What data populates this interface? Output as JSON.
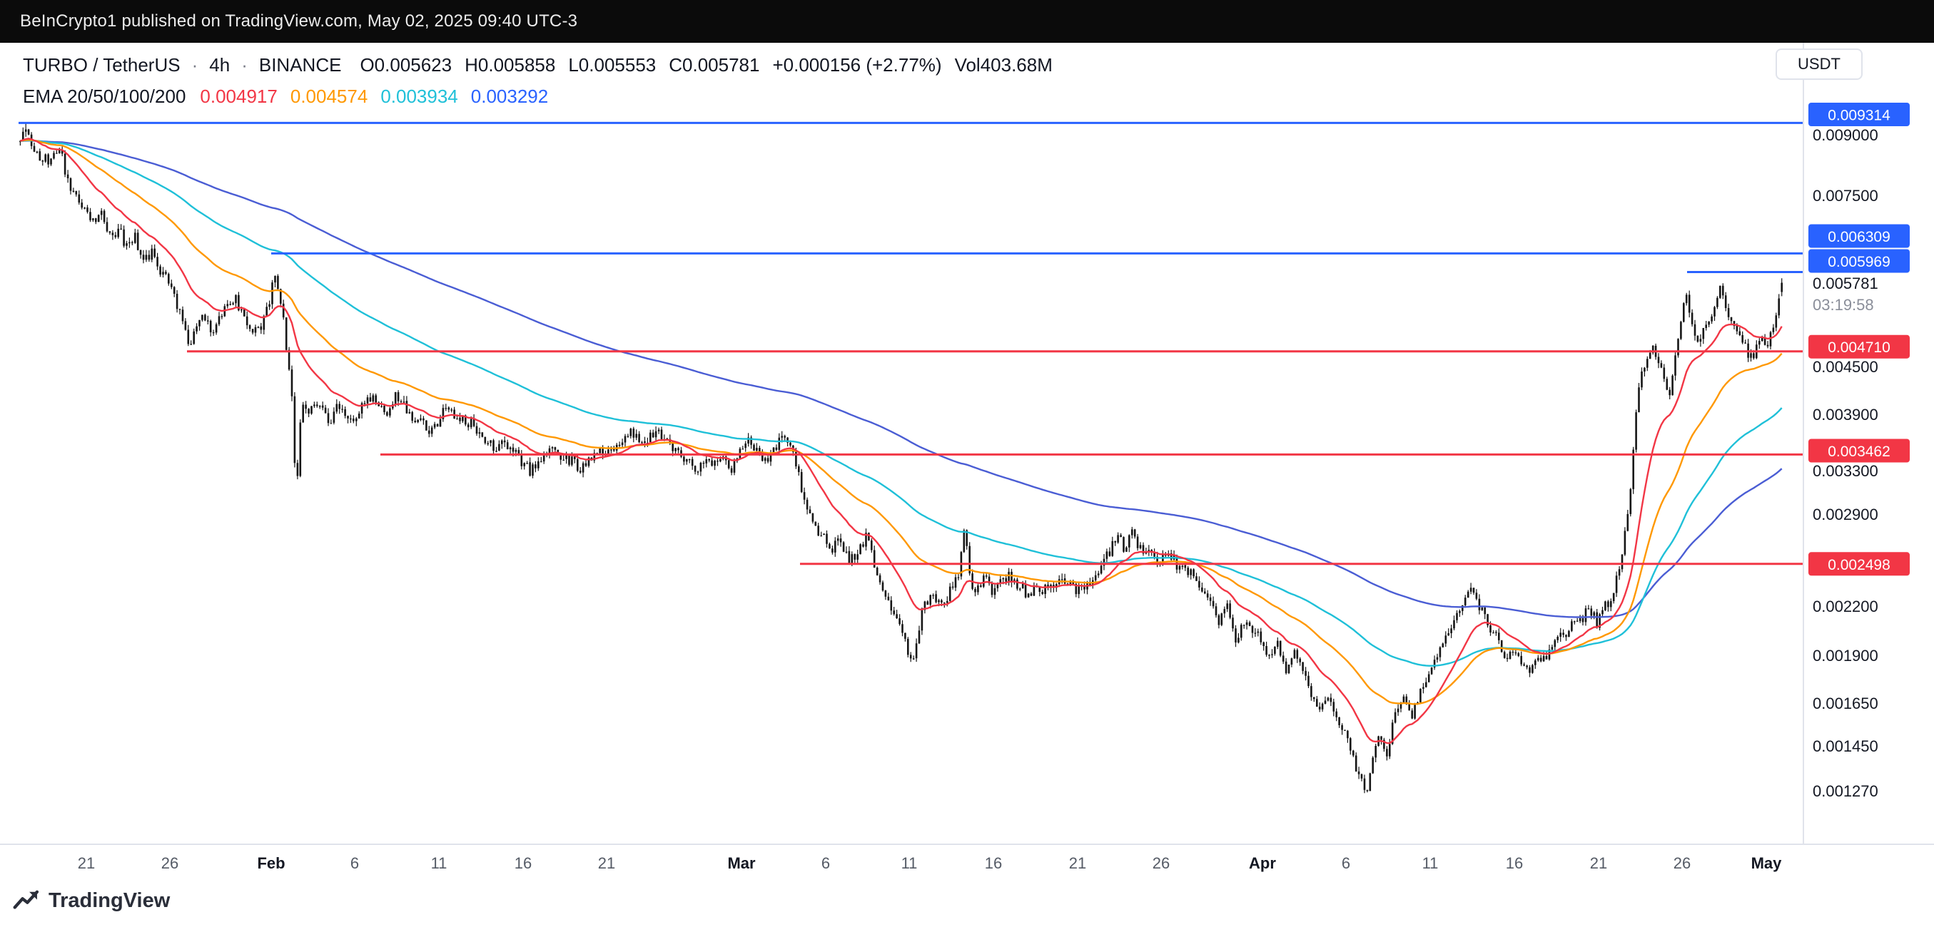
{
  "topbar": {
    "attribution": "BeInCrypto1 published on TradingView.com, May 02, 2025 09:40 UTC-3"
  },
  "header": {
    "symbol": "TURBO / TetherUS",
    "separator": "·",
    "interval": "4h",
    "exchange": "BINANCE",
    "open": "O0.005623",
    "high": "H0.005858",
    "low": "L0.005553",
    "close": "C0.005781",
    "change": "+0.000156 (+2.77%)",
    "volume": "Vol403.68M",
    "ema": {
      "label": "EMA 20/50/100/200",
      "values": [
        {
          "value": "0.004917",
          "color": "#f23645"
        },
        {
          "value": "0.004574",
          "color": "#ff9800"
        },
        {
          "value": "0.003934",
          "color": "#1fc0d8"
        },
        {
          "value": "0.003292",
          "color": "#2962ff"
        }
      ]
    }
  },
  "price_axis": {
    "currency_button": "USDT"
  },
  "footer": {
    "logo_text": "TradingView"
  },
  "chart_data": {
    "type": "candlestick",
    "symbol": "TURBO/TetherUS",
    "exchange": "BINANCE",
    "interval": "4h",
    "price_scale": "log",
    "candle_color": "#161616",
    "x_range": [
      "Jan 17 2025",
      "May 2 2025"
    ],
    "last": {
      "open": 0.005623,
      "high": 0.005858,
      "low": 0.005553,
      "close": 0.005781,
      "change": "+0.000156",
      "change_pct": 2.77,
      "volume": "403.68M"
    },
    "current_price": {
      "label": "0.005781",
      "price": 0.005781,
      "countdown": "03:19:58"
    },
    "emas": [
      {
        "period": 20,
        "color": "#f23645",
        "value": 0.004917
      },
      {
        "period": 50,
        "color": "#ff9800",
        "value": 0.004574
      },
      {
        "period": 100,
        "color": "#1fc0d8",
        "value": 0.003934
      },
      {
        "period": 200,
        "color": "#4a5dd4",
        "value": 0.003292
      }
    ],
    "horizontal_lines": [
      {
        "label": "0.009314",
        "price": 0.009314,
        "color": "#2962ff",
        "start_day": 0
      },
      {
        "label": "0.006309",
        "price": 0.006309,
        "color": "#2962ff",
        "start_day": 15
      },
      {
        "label": "0.005969",
        "price": 0.005969,
        "color": "#2962ff",
        "start_day": 99.3
      },
      {
        "label": "0.004710",
        "price": 0.00471,
        "color": "#f23645",
        "start_day": 10
      },
      {
        "label": "0.003462",
        "price": 0.003462,
        "color": "#f23645",
        "start_day": 21.5
      },
      {
        "label": "0.002498",
        "price": 0.002498,
        "color": "#f23645",
        "start_day": 46.5
      }
    ],
    "y_ticks": [
      {
        "label": "0.009000",
        "price": 0.009
      },
      {
        "label": "0.007500",
        "price": 0.0075
      },
      {
        "label": "0.004500",
        "price": 0.0045
      },
      {
        "label": "0.003900",
        "price": 0.0039
      },
      {
        "label": "0.003300",
        "price": 0.0033
      },
      {
        "label": "0.002900",
        "price": 0.0029
      },
      {
        "label": "0.002200",
        "price": 0.0022
      },
      {
        "label": "0.001900",
        "price": 0.0019
      },
      {
        "label": "0.001650",
        "price": 0.00165
      },
      {
        "label": "0.001450",
        "price": 0.00145
      },
      {
        "label": "0.001270",
        "price": 0.00127
      }
    ],
    "x_ticks": [
      {
        "label": "21",
        "day": 4,
        "major": false
      },
      {
        "label": "26",
        "day": 9,
        "major": false
      },
      {
        "label": "Feb",
        "day": 15,
        "major": true
      },
      {
        "label": "6",
        "day": 20,
        "major": false
      },
      {
        "label": "11",
        "day": 25,
        "major": false
      },
      {
        "label": "16",
        "day": 30,
        "major": false
      },
      {
        "label": "21",
        "day": 35,
        "major": false
      },
      {
        "label": "Mar",
        "day": 43,
        "major": true
      },
      {
        "label": "6",
        "day": 48,
        "major": false
      },
      {
        "label": "11",
        "day": 53,
        "major": false
      },
      {
        "label": "16",
        "day": 58,
        "major": false
      },
      {
        "label": "21",
        "day": 63,
        "major": false
      },
      {
        "label": "26",
        "day": 68,
        "major": false
      },
      {
        "label": "Apr",
        "day": 74,
        "major": true
      },
      {
        "label": "6",
        "day": 79,
        "major": false
      },
      {
        "label": "11",
        "day": 84,
        "major": false
      },
      {
        "label": "16",
        "day": 89,
        "major": false
      },
      {
        "label": "21",
        "day": 94,
        "major": false
      },
      {
        "label": "26",
        "day": 99,
        "major": false
      },
      {
        "label": "May",
        "day": 104,
        "major": true
      }
    ],
    "price_path": [
      [
        0,
        0.0088
      ],
      [
        0.4,
        0.0092
      ],
      [
        1,
        0.0085
      ],
      [
        2,
        0.0083
      ],
      [
        2.5,
        0.0087
      ],
      [
        3,
        0.0078
      ],
      [
        4,
        0.0072
      ],
      [
        4.5,
        0.0069
      ],
      [
        5,
        0.0071
      ],
      [
        5.5,
        0.0066
      ],
      [
        6,
        0.0068
      ],
      [
        6.5,
        0.0064
      ],
      [
        7,
        0.0066
      ],
      [
        7.5,
        0.0062
      ],
      [
        8,
        0.0063
      ],
      [
        8.5,
        0.006
      ],
      [
        9,
        0.0058
      ],
      [
        9.5,
        0.0054
      ],
      [
        10,
        0.005
      ],
      [
        10.3,
        0.0047
      ],
      [
        10.7,
        0.0052
      ],
      [
        11,
        0.0053
      ],
      [
        11.5,
        0.005
      ],
      [
        12,
        0.0052
      ],
      [
        12.5,
        0.0054
      ],
      [
        13,
        0.0055
      ],
      [
        13.5,
        0.0052
      ],
      [
        14,
        0.005
      ],
      [
        14.5,
        0.0051
      ],
      [
        15,
        0.0055
      ],
      [
        15.3,
        0.0059
      ],
      [
        15.7,
        0.0054
      ],
      [
        16,
        0.0048
      ],
      [
        16.3,
        0.0043
      ],
      [
        16.6,
        0.003
      ],
      [
        16.9,
        0.0041
      ],
      [
        17.3,
        0.0039
      ],
      [
        17.7,
        0.0041
      ],
      [
        18,
        0.004
      ],
      [
        18.5,
        0.0038
      ],
      [
        19,
        0.004
      ],
      [
        19.5,
        0.0039
      ],
      [
        20,
        0.0038
      ],
      [
        20.5,
        0.004
      ],
      [
        21,
        0.0041
      ],
      [
        21.5,
        0.004
      ],
      [
        22,
        0.0039
      ],
      [
        22.5,
        0.0041
      ],
      [
        23,
        0.004
      ],
      [
        23.5,
        0.0038
      ],
      [
        24,
        0.0039
      ],
      [
        24.5,
        0.0037
      ],
      [
        25,
        0.0038
      ],
      [
        25.5,
        0.004
      ],
      [
        26,
        0.0039
      ],
      [
        27,
        0.0038
      ],
      [
        28,
        0.0036
      ],
      [
        28.5,
        0.0035
      ],
      [
        29,
        0.0036
      ],
      [
        30,
        0.0034
      ],
      [
        30.5,
        0.0033
      ],
      [
        31,
        0.0034
      ],
      [
        32,
        0.0035
      ],
      [
        33,
        0.0034
      ],
      [
        33.5,
        0.0033
      ],
      [
        34,
        0.0034
      ],
      [
        35,
        0.0035
      ],
      [
        36,
        0.0036
      ],
      [
        36.5,
        0.0037
      ],
      [
        37,
        0.0036
      ],
      [
        38,
        0.0037
      ],
      [
        38.5,
        0.0036
      ],
      [
        39,
        0.0035
      ],
      [
        40,
        0.0034
      ],
      [
        40.5,
        0.0033
      ],
      [
        41,
        0.0034
      ],
      [
        42,
        0.0034
      ],
      [
        42.5,
        0.0033
      ],
      [
        43,
        0.0035
      ],
      [
        43.5,
        0.0036
      ],
      [
        44,
        0.0035
      ],
      [
        44.5,
        0.0034
      ],
      [
        45,
        0.0035
      ],
      [
        45.5,
        0.0037
      ],
      [
        46,
        0.0036
      ],
      [
        46.4,
        0.0033
      ],
      [
        47,
        0.0029
      ],
      [
        47.5,
        0.0028
      ],
      [
        48,
        0.0027
      ],
      [
        48.5,
        0.0026
      ],
      [
        49,
        0.0027
      ],
      [
        49.5,
        0.0025
      ],
      [
        50,
        0.0026
      ],
      [
        50.5,
        0.0027
      ],
      [
        51,
        0.0025
      ],
      [
        51.5,
        0.0023
      ],
      [
        52,
        0.0022
      ],
      [
        52.5,
        0.0021
      ],
      [
        53,
        0.0019
      ],
      [
        53.3,
        0.00185
      ],
      [
        53.7,
        0.0021
      ],
      [
        54,
        0.0022
      ],
      [
        54.5,
        0.0023
      ],
      [
        55,
        0.0022
      ],
      [
        55.5,
        0.0023
      ],
      [
        56,
        0.0024
      ],
      [
        56.3,
        0.0028
      ],
      [
        56.7,
        0.0024
      ],
      [
        57,
        0.0023
      ],
      [
        57.5,
        0.0024
      ],
      [
        58,
        0.0023
      ],
      [
        59,
        0.0024
      ],
      [
        60,
        0.0023
      ],
      [
        61,
        0.0023
      ],
      [
        62,
        0.0024
      ],
      [
        63,
        0.0023
      ],
      [
        64,
        0.0024
      ],
      [
        64.5,
        0.0025
      ],
      [
        65,
        0.0026
      ],
      [
        65.5,
        0.0027
      ],
      [
        66,
        0.0026
      ],
      [
        66.3,
        0.0028
      ],
      [
        66.7,
        0.0026
      ],
      [
        67,
        0.0026
      ],
      [
        68,
        0.0025
      ],
      [
        68.5,
        0.0026
      ],
      [
        69,
        0.0025
      ],
      [
        70,
        0.0024
      ],
      [
        70.5,
        0.0023
      ],
      [
        71,
        0.0022
      ],
      [
        71.5,
        0.0021
      ],
      [
        72,
        0.0022
      ],
      [
        72.5,
        0.002
      ],
      [
        73,
        0.0021
      ],
      [
        74,
        0.002
      ],
      [
        74.5,
        0.0019
      ],
      [
        75,
        0.002
      ],
      [
        75.5,
        0.0018
      ],
      [
        76,
        0.0019
      ],
      [
        76.5,
        0.0018
      ],
      [
        77,
        0.0017
      ],
      [
        77.5,
        0.0016
      ],
      [
        78,
        0.0017
      ],
      [
        78.5,
        0.0016
      ],
      [
        79,
        0.0015
      ],
      [
        79.5,
        0.0014
      ],
      [
        80,
        0.0013
      ],
      [
        80.3,
        0.00128
      ],
      [
        80.7,
        0.0014
      ],
      [
        81,
        0.0015
      ],
      [
        81.5,
        0.0014
      ],
      [
        82,
        0.0016
      ],
      [
        82.5,
        0.0017
      ],
      [
        83,
        0.0016
      ],
      [
        83.5,
        0.0017
      ],
      [
        84,
        0.0018
      ],
      [
        84.5,
        0.0019
      ],
      [
        85,
        0.002
      ],
      [
        85.5,
        0.0021
      ],
      [
        86,
        0.0022
      ],
      [
        86.5,
        0.0023
      ],
      [
        87,
        0.0022
      ],
      [
        87.5,
        0.0021
      ],
      [
        88,
        0.002
      ],
      [
        88.5,
        0.0019
      ],
      [
        89,
        0.0019
      ],
      [
        89.5,
        0.00185
      ],
      [
        90,
        0.0018
      ],
      [
        90.5,
        0.0019
      ],
      [
        91,
        0.0019
      ],
      [
        91.5,
        0.002
      ],
      [
        92,
        0.002
      ],
      [
        92.5,
        0.0021
      ],
      [
        93,
        0.0021
      ],
      [
        93.5,
        0.0022
      ],
      [
        94,
        0.0021
      ],
      [
        94.5,
        0.0022
      ],
      [
        95,
        0.0023
      ],
      [
        95.5,
        0.0026
      ],
      [
        96,
        0.0031
      ],
      [
        96.3,
        0.0038
      ],
      [
        96.6,
        0.0044
      ],
      [
        97,
        0.0046
      ],
      [
        97.3,
        0.0049
      ],
      [
        97.7,
        0.0045
      ],
      [
        98,
        0.0043
      ],
      [
        98.3,
        0.0041
      ],
      [
        98.7,
        0.0047
      ],
      [
        99,
        0.0052
      ],
      [
        99.3,
        0.0056
      ],
      [
        99.7,
        0.0051
      ],
      [
        100,
        0.0048
      ],
      [
        100.5,
        0.0051
      ],
      [
        101,
        0.0054
      ],
      [
        101.3,
        0.0058
      ],
      [
        101.7,
        0.0054
      ],
      [
        102,
        0.0051
      ],
      [
        102.5,
        0.0049
      ],
      [
        103,
        0.0047
      ],
      [
        103.3,
        0.0046
      ],
      [
        103.7,
        0.0049
      ],
      [
        104,
        0.0048
      ],
      [
        104.5,
        0.005
      ],
      [
        105,
        0.005781
      ]
    ]
  }
}
